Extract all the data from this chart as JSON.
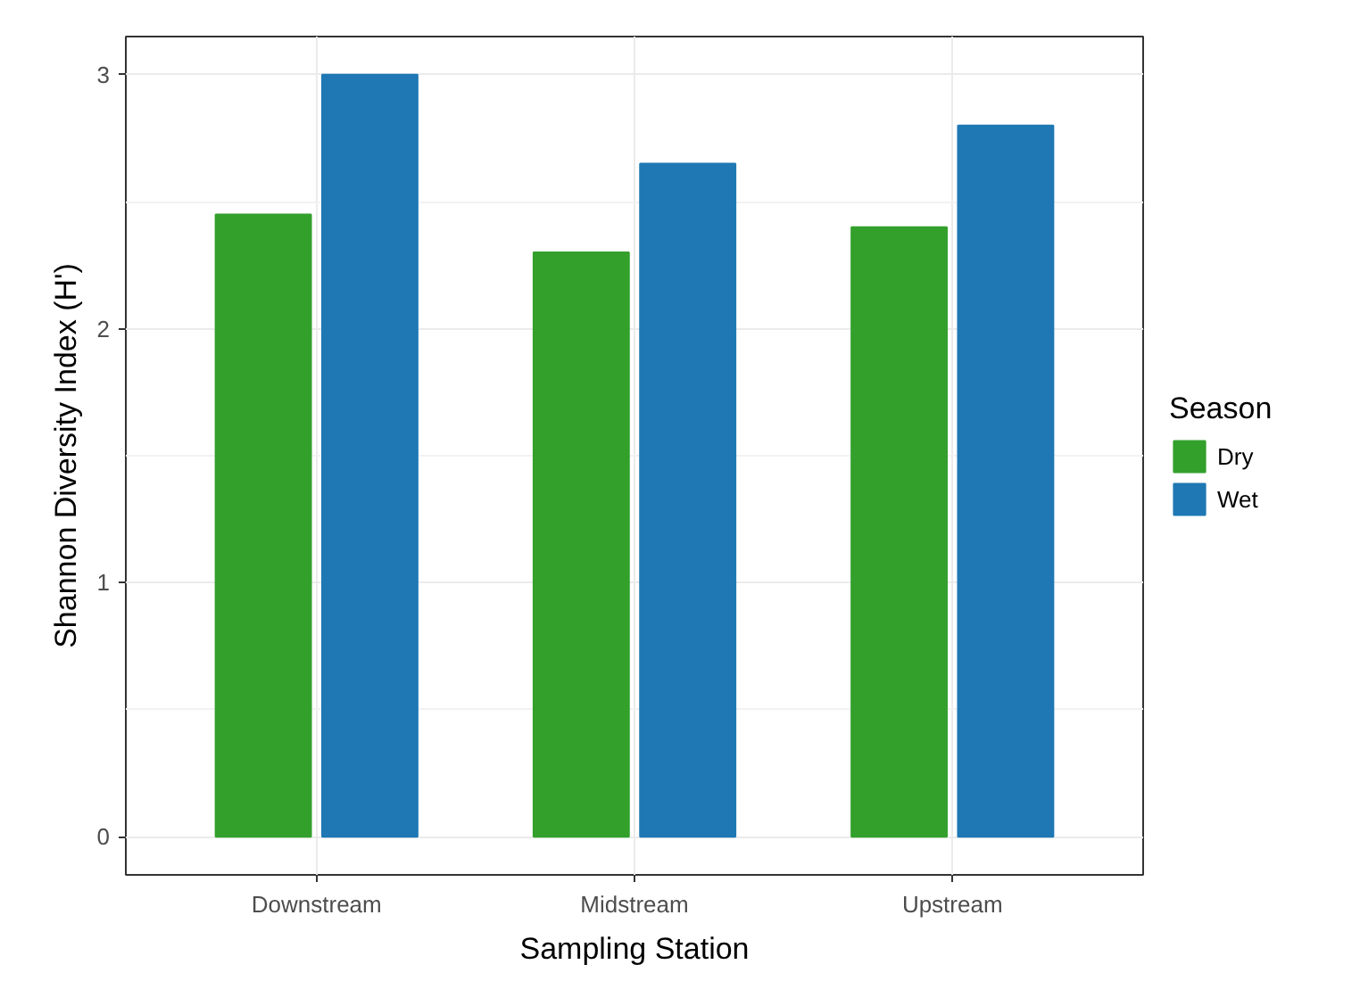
{
  "chart_data": {
    "type": "bar",
    "xlabel": "Sampling Station",
    "ylabel": "Shannon Diversity Index (H')",
    "legend_title": "Season",
    "categories": [
      "Downstream",
      "Midstream",
      "Upstream"
    ],
    "series": [
      {
        "name": "Dry",
        "color": "#33a02c",
        "values": [
          2.45,
          2.3,
          2.4
        ]
      },
      {
        "name": "Wet",
        "color": "#1f78b4",
        "values": [
          3.0,
          2.65,
          2.8
        ]
      }
    ],
    "ylim": [
      -0.15,
      3.15
    ],
    "yticks": [
      0,
      1,
      2,
      3
    ],
    "grid": true,
    "legend": "right"
  }
}
